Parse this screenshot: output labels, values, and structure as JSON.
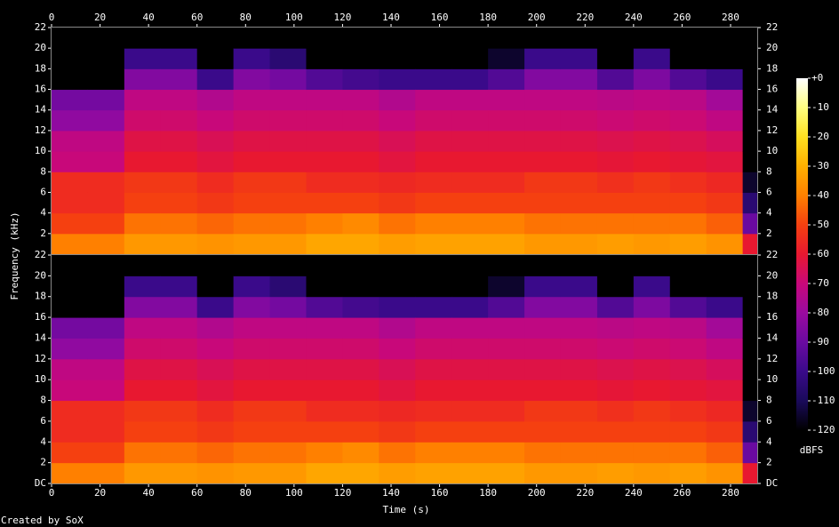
{
  "chart_data": [
    {
      "type": "heatmap",
      "xaxis_position": "top",
      "xlim": [
        0,
        291
      ],
      "xticks": [
        0,
        20,
        40,
        60,
        80,
        100,
        120,
        140,
        160,
        180,
        200,
        220,
        240,
        260,
        280
      ],
      "ylim": [
        0,
        22
      ],
      "yticks": [
        2,
        4,
        6,
        8,
        10,
        12,
        14,
        16,
        18,
        20,
        22
      ],
      "x_bins": [
        0,
        15,
        30,
        45,
        60,
        75,
        90,
        105,
        120,
        135,
        150,
        165,
        180,
        195,
        210,
        225,
        240,
        255,
        270,
        285,
        291
      ],
      "y_bins": [
        0,
        2,
        4,
        6,
        8,
        10,
        12,
        14,
        16,
        18,
        20,
        22
      ],
      "z": [
        [
          -40,
          -50,
          -55,
          -55,
          -70,
          -72,
          -82,
          -88,
          -120,
          -120,
          -120
        ],
        [
          -40,
          -50,
          -55,
          -55,
          -70,
          -72,
          -82,
          -88,
          -120,
          -120,
          -120
        ],
        [
          -35,
          -42,
          -50,
          -52,
          -60,
          -63,
          -68,
          -72,
          -85,
          -100,
          -120
        ],
        [
          -35,
          -42,
          -50,
          -52,
          -60,
          -63,
          -68,
          -72,
          -85,
          -100,
          -120
        ],
        [
          -36,
          -44,
          -52,
          -55,
          -62,
          -65,
          -70,
          -75,
          -100,
          -120,
          -120
        ],
        [
          -35,
          -42,
          -50,
          -52,
          -60,
          -63,
          -68,
          -72,
          -85,
          -100,
          -120
        ],
        [
          -35,
          -42,
          -50,
          -52,
          -60,
          -63,
          -68,
          -72,
          -88,
          -105,
          -120
        ],
        [
          -32,
          -40,
          -50,
          -55,
          -60,
          -63,
          -68,
          -72,
          -95,
          -120,
          -120
        ],
        [
          -32,
          -38,
          -50,
          -55,
          -60,
          -63,
          -68,
          -72,
          -98,
          -120,
          -120
        ],
        [
          -34,
          -42,
          -52,
          -56,
          -62,
          -65,
          -70,
          -75,
          -100,
          -120,
          -120
        ],
        [
          -33,
          -40,
          -50,
          -55,
          -60,
          -63,
          -68,
          -72,
          -100,
          -120,
          -120
        ],
        [
          -33,
          -40,
          -50,
          -55,
          -60,
          -63,
          -68,
          -72,
          -100,
          -120,
          -120
        ],
        [
          -33,
          -40,
          -50,
          -55,
          -60,
          -63,
          -68,
          -72,
          -95,
          -115,
          -120
        ],
        [
          -35,
          -42,
          -50,
          -52,
          -60,
          -63,
          -68,
          -72,
          -85,
          -100,
          -120
        ],
        [
          -35,
          -42,
          -50,
          -52,
          -60,
          -63,
          -68,
          -72,
          -85,
          -100,
          -120
        ],
        [
          -34,
          -42,
          -50,
          -54,
          -61,
          -64,
          -69,
          -73,
          -95,
          -120,
          -120
        ],
        [
          -35,
          -42,
          -50,
          -52,
          -60,
          -63,
          -68,
          -72,
          -86,
          -100,
          -120
        ],
        [
          -34,
          -42,
          -50,
          -54,
          -61,
          -64,
          -69,
          -73,
          -95,
          -120,
          -120
        ],
        [
          -36,
          -45,
          -52,
          -56,
          -62,
          -66,
          -72,
          -78,
          -100,
          -120,
          -120
        ],
        [
          -60,
          -90,
          -105,
          -115,
          -120,
          -120,
          -120,
          -120,
          -120,
          -120,
          -120
        ]
      ]
    },
    {
      "type": "heatmap",
      "xaxis_position": "bottom",
      "xlim": [
        0,
        291
      ],
      "xticks": [
        0,
        20,
        40,
        60,
        80,
        100,
        120,
        140,
        160,
        180,
        200,
        220,
        240,
        260,
        280
      ],
      "ylim": [
        0,
        22
      ],
      "yticks": [
        {
          "value": 0,
          "label": "DC"
        },
        2,
        4,
        6,
        8,
        10,
        12,
        14,
        16,
        18,
        20,
        22
      ],
      "x_bins": [
        0,
        15,
        30,
        45,
        60,
        75,
        90,
        105,
        120,
        135,
        150,
        165,
        180,
        195,
        210,
        225,
        240,
        255,
        270,
        285,
        291
      ],
      "y_bins": [
        0,
        2,
        4,
        6,
        8,
        10,
        12,
        14,
        16,
        18,
        20,
        22
      ],
      "z": [
        [
          -40,
          -50,
          -55,
          -55,
          -70,
          -72,
          -82,
          -88,
          -120,
          -120,
          -120
        ],
        [
          -40,
          -50,
          -55,
          -55,
          -70,
          -72,
          -82,
          -88,
          -120,
          -120,
          -120
        ],
        [
          -35,
          -42,
          -50,
          -52,
          -60,
          -63,
          -68,
          -72,
          -85,
          -100,
          -120
        ],
        [
          -35,
          -42,
          -50,
          -52,
          -60,
          -63,
          -68,
          -72,
          -85,
          -100,
          -120
        ],
        [
          -36,
          -44,
          -52,
          -55,
          -62,
          -65,
          -70,
          -75,
          -100,
          -120,
          -120
        ],
        [
          -35,
          -42,
          -50,
          -52,
          -60,
          -63,
          -68,
          -72,
          -85,
          -100,
          -120
        ],
        [
          -35,
          -42,
          -50,
          -52,
          -60,
          -63,
          -68,
          -72,
          -88,
          -105,
          -120
        ],
        [
          -32,
          -40,
          -50,
          -55,
          -60,
          -63,
          -68,
          -72,
          -95,
          -120,
          -120
        ],
        [
          -32,
          -38,
          -50,
          -55,
          -60,
          -63,
          -68,
          -72,
          -98,
          -120,
          -120
        ],
        [
          -34,
          -42,
          -52,
          -56,
          -62,
          -65,
          -70,
          -75,
          -100,
          -120,
          -120
        ],
        [
          -33,
          -40,
          -50,
          -55,
          -60,
          -63,
          -68,
          -72,
          -100,
          -120,
          -120
        ],
        [
          -33,
          -40,
          -50,
          -55,
          -60,
          -63,
          -68,
          -72,
          -100,
          -120,
          -120
        ],
        [
          -33,
          -40,
          -50,
          -55,
          -60,
          -63,
          -68,
          -72,
          -95,
          -115,
          -120
        ],
        [
          -35,
          -42,
          -50,
          -52,
          -60,
          -63,
          -68,
          -72,
          -85,
          -100,
          -120
        ],
        [
          -35,
          -42,
          -50,
          -52,
          -60,
          -63,
          -68,
          -72,
          -85,
          -100,
          -120
        ],
        [
          -34,
          -42,
          -50,
          -54,
          -61,
          -64,
          -69,
          -73,
          -95,
          -120,
          -120
        ],
        [
          -35,
          -42,
          -50,
          -52,
          -60,
          -63,
          -68,
          -72,
          -86,
          -100,
          -120
        ],
        [
          -34,
          -42,
          -50,
          -54,
          -61,
          -64,
          -69,
          -73,
          -95,
          -120,
          -120
        ],
        [
          -36,
          -45,
          -52,
          -56,
          -62,
          -66,
          -72,
          -78,
          -100,
          -120,
          -120
        ],
        [
          -60,
          -90,
          -105,
          -115,
          -120,
          -120,
          -120,
          -120,
          -120,
          -120,
          -120
        ]
      ]
    }
  ],
  "xlabel": "Time (s)",
  "ylabel": "Frequency (kHz)",
  "credit": "Created by SoX",
  "colorbar": {
    "label": "dBFS",
    "clim": [
      -120,
      0
    ],
    "ticks": [
      {
        "value": 0,
        "label": "+0"
      },
      -10,
      -20,
      -30,
      -40,
      -50,
      -60,
      -70,
      -80,
      -90,
      -100,
      -110,
      -120
    ]
  }
}
